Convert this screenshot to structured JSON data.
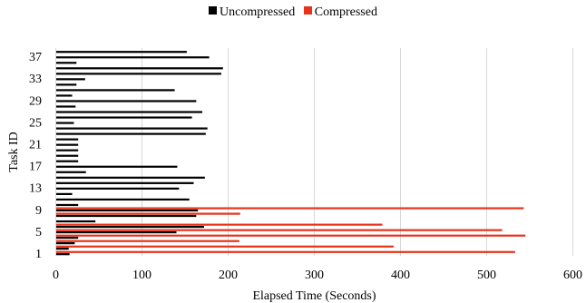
{
  "chart_data": {
    "type": "bar",
    "orientation": "horizontal",
    "xlabel": "Elapsed Time (Seconds)",
    "ylabel": "Task ID",
    "xlim": [
      0,
      600
    ],
    "x_ticks": [
      0,
      100,
      200,
      300,
      400,
      500,
      600
    ],
    "y_tick_labels": [
      "1",
      "5",
      "9",
      "13",
      "17",
      "21",
      "25",
      "29",
      "33",
      "37"
    ],
    "grid": "vertical",
    "legend_position": "top",
    "categories": [
      1,
      2,
      3,
      4,
      5,
      6,
      7,
      8,
      9,
      10,
      11,
      12,
      13,
      14,
      15,
      16,
      17,
      18,
      19,
      20,
      21,
      22,
      23,
      24,
      25,
      26,
      27,
      28,
      29,
      30,
      31,
      32,
      33,
      34,
      35,
      36,
      37,
      38
    ],
    "series": [
      {
        "name": "Uncompressed",
        "color": "#000000",
        "values": [
          16,
          15,
          22,
          26,
          140,
          172,
          46,
          163,
          165,
          26,
          155,
          19,
          143,
          160,
          173,
          35,
          141,
          26,
          26,
          26,
          26,
          26,
          174,
          176,
          21,
          158,
          170,
          23,
          163,
          19,
          138,
          24,
          34,
          192,
          194,
          24,
          178,
          152
        ]
      },
      {
        "name": "Compressed",
        "color": "#e8331c",
        "values": [
          533,
          392,
          213,
          545,
          518,
          379,
          0,
          214,
          543,
          0,
          0,
          0,
          0,
          0,
          0,
          0,
          0,
          0,
          0,
          0,
          0,
          0,
          0,
          0,
          0,
          0,
          0,
          0,
          0,
          0,
          0,
          0,
          0,
          0,
          0,
          0,
          0,
          0
        ]
      }
    ]
  }
}
